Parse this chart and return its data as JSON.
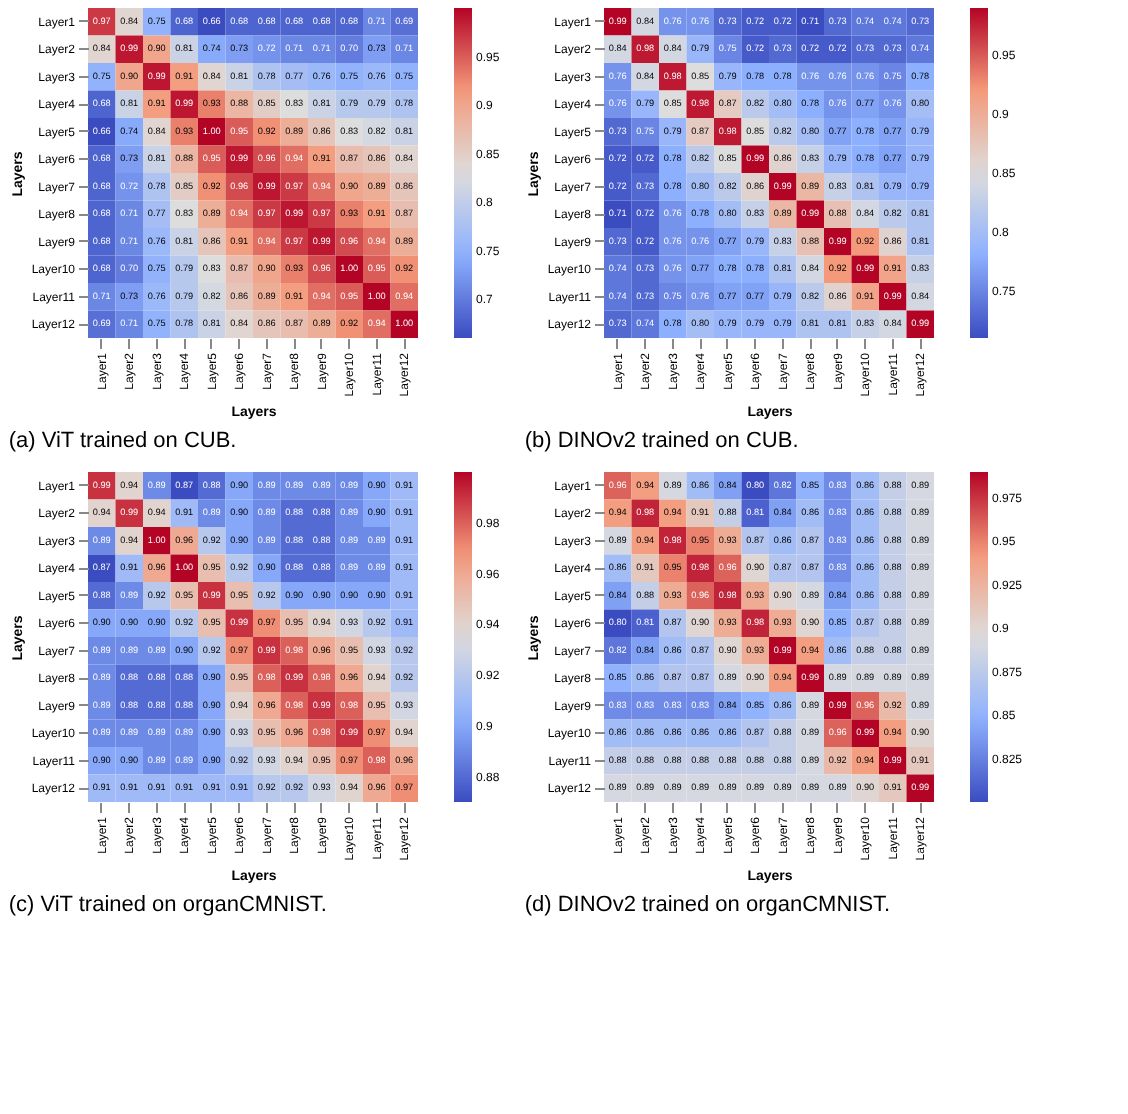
{
  "chart_data": [
    {
      "type": "heatmap",
      "title": "(a) ViT trained on CUB.",
      "xlabel": "Layers",
      "ylabel": "Layers",
      "categories": [
        "Layer1",
        "Layer2",
        "Layer3",
        "Layer4",
        "Layer5",
        "Layer6",
        "Layer7",
        "Layer8",
        "Layer9",
        "Layer10",
        "Layer11",
        "Layer12"
      ],
      "y_categories": [
        "Layer1",
        "Layer2",
        "Layer3",
        "Layer4",
        "Layer5",
        "Layer6",
        "Layer7",
        "Layer8",
        "Layer9",
        "Layer10",
        "Layer11",
        "Layer12"
      ],
      "clim": [
        0.66,
        1.0
      ],
      "cticks": [
        0.7,
        0.75,
        0.8,
        0.85,
        0.9,
        0.95
      ],
      "cells": [
        [
          0.97,
          0.84,
          0.75,
          0.68,
          0.66,
          0.68,
          0.68,
          0.68,
          0.68,
          0.68,
          0.71,
          0.69
        ],
        [
          0.84,
          0.99,
          0.9,
          0.81,
          0.74,
          0.73,
          0.72,
          0.71,
          0.71,
          0.7,
          0.73,
          0.71
        ],
        [
          0.75,
          0.9,
          0.99,
          0.91,
          0.84,
          0.81,
          0.78,
          0.77,
          0.76,
          0.75,
          0.76,
          0.75
        ],
        [
          0.68,
          0.81,
          0.91,
          0.99,
          0.93,
          0.88,
          0.85,
          0.83,
          0.81,
          0.79,
          0.79,
          0.78
        ],
        [
          0.66,
          0.74,
          0.84,
          0.93,
          1.0,
          0.95,
          0.92,
          0.89,
          0.86,
          0.83,
          0.82,
          0.81
        ],
        [
          0.68,
          0.73,
          0.81,
          0.88,
          0.95,
          0.99,
          0.96,
          0.94,
          0.91,
          0.87,
          0.86,
          0.84
        ],
        [
          0.68,
          0.72,
          0.78,
          0.85,
          0.92,
          0.96,
          0.99,
          0.97,
          0.94,
          0.9,
          0.89,
          0.86
        ],
        [
          0.68,
          0.71,
          0.77,
          0.83,
          0.89,
          0.94,
          0.97,
          0.99,
          0.97,
          0.93,
          0.91,
          0.87
        ],
        [
          0.68,
          0.71,
          0.76,
          0.81,
          0.86,
          0.91,
          0.94,
          0.97,
          0.99,
          0.96,
          0.94,
          0.89
        ],
        [
          0.68,
          0.7,
          0.75,
          0.79,
          0.83,
          0.87,
          0.9,
          0.93,
          0.96,
          1.0,
          0.95,
          0.92
        ],
        [
          0.71,
          0.73,
          0.76,
          0.79,
          0.82,
          0.86,
          0.89,
          0.91,
          0.94,
          0.95,
          1.0,
          0.94
        ],
        [
          0.69,
          0.71,
          0.75,
          0.78,
          0.81,
          0.84,
          0.86,
          0.87,
          0.89,
          0.92,
          0.94,
          1.0
        ]
      ],
      "cell_labels": [
        [
          "0.97",
          "0.84",
          "0.75",
          "0.68",
          "0.66",
          "0.68",
          "0.68",
          "0.68",
          "0.68",
          "0.68",
          "0.71",
          "0.69"
        ],
        [
          "0.84",
          "0.99",
          "0.90",
          "0.81",
          "0.74",
          "0.73",
          "0.72",
          "0.71",
          "0.71",
          "0.70",
          "0.73",
          "0.71"
        ],
        [
          "0.75",
          "0.90",
          "0.99",
          "0.91",
          "0.84",
          "0.81",
          "0.78",
          "0.77",
          "0.76",
          "0.75",
          "0.76",
          "0.75"
        ],
        [
          "0.68",
          "0.81",
          "0.91",
          "0.99",
          "0.93",
          "0.88",
          "0.85",
          "0.83",
          "0.81",
          "0.79",
          "0.79",
          "0.78"
        ],
        [
          "0.66",
          "0.74",
          "0.84",
          "0.93",
          "1.00",
          "0.95",
          "0.92",
          "0.89",
          "0.86",
          "0.83",
          "0.82",
          "0.81"
        ],
        [
          "0.68",
          "0.73",
          "0.81",
          "0.88",
          "0.95",
          "0.99",
          "0.96",
          "0.94",
          "0.91",
          "0.87",
          "0.86",
          "0.84"
        ],
        [
          "0.68",
          "0.72",
          "0.78",
          "0.85",
          "0.92",
          "0.96",
          "0.99",
          "0.97",
          "0.94",
          "0.90",
          "0.89",
          "0.86"
        ],
        [
          "0.68",
          "0.71",
          "0.77",
          "0.83",
          "0.89",
          "0.94",
          "0.97",
          "0.99",
          "0.97",
          "0.93",
          "0.91",
          "0.87"
        ],
        [
          "0.68",
          "0.71",
          "0.76",
          "0.81",
          "0.86",
          "0.91",
          "0.94",
          "0.97",
          "0.99",
          "0.96",
          "0.94",
          "0.89"
        ],
        [
          "0.68",
          "0.70",
          "0.75",
          "0.79",
          "0.83",
          "0.87",
          "0.90",
          "0.93",
          "0.96",
          "1.00",
          "0.95",
          "0.92"
        ],
        [
          "0.71",
          "0.73",
          "0.76",
          "0.79",
          "0.82",
          "0.86",
          "0.89",
          "0.91",
          "0.94",
          "0.95",
          "1.00",
          "0.94"
        ],
        [
          "0.69",
          "0.71",
          "0.75",
          "0.78",
          "0.81",
          "0.84",
          "0.86",
          "0.87",
          "0.89",
          "0.92",
          "0.94",
          "1.00"
        ]
      ]
    },
    {
      "type": "heatmap",
      "title": "(b) DINOv2 trained on CUB.",
      "xlabel": "Layers",
      "ylabel": "Layers",
      "categories": [
        "Layer1",
        "Layer2",
        "Layer3",
        "Layer4",
        "Layer5",
        "Layer6",
        "Layer7",
        "Layer8",
        "Layer9",
        "Layer10",
        "Layer11",
        "Layer12"
      ],
      "y_categories": [
        "Layer1",
        "Layer2",
        "Layer3",
        "Layer4",
        "Layer5",
        "Layer6",
        "Layer7",
        "Layer8",
        "Layer9",
        "Layer10",
        "Layer11",
        "Layer12"
      ],
      "clim": [
        0.71,
        0.99
      ],
      "cticks": [
        0.75,
        0.8,
        0.85,
        0.9,
        0.95
      ],
      "cells": [
        [
          0.99,
          0.84,
          0.76,
          0.76,
          0.73,
          0.72,
          0.72,
          0.71,
          0.73,
          0.74,
          0.74,
          0.73
        ],
        [
          0.84,
          0.98,
          0.84,
          0.79,
          0.75,
          0.72,
          0.73,
          0.72,
          0.72,
          0.73,
          0.73,
          0.74
        ],
        [
          0.76,
          0.84,
          0.98,
          0.85,
          0.79,
          0.78,
          0.78,
          0.76,
          0.76,
          0.76,
          0.75,
          0.78
        ],
        [
          0.76,
          0.79,
          0.85,
          0.98,
          0.87,
          0.82,
          0.8,
          0.78,
          0.76,
          0.77,
          0.76,
          0.8
        ],
        [
          0.73,
          0.75,
          0.79,
          0.87,
          0.98,
          0.85,
          0.82,
          0.8,
          0.77,
          0.78,
          0.77,
          0.79
        ],
        [
          0.72,
          0.72,
          0.78,
          0.82,
          0.85,
          0.99,
          0.86,
          0.83,
          0.79,
          0.78,
          0.77,
          0.79
        ],
        [
          0.72,
          0.73,
          0.78,
          0.8,
          0.82,
          0.86,
          0.99,
          0.89,
          0.83,
          0.81,
          0.79,
          0.79
        ],
        [
          0.71,
          0.72,
          0.76,
          0.78,
          0.8,
          0.83,
          0.89,
          0.99,
          0.88,
          0.84,
          0.82,
          0.81
        ],
        [
          0.73,
          0.72,
          0.76,
          0.76,
          0.77,
          0.79,
          0.83,
          0.88,
          0.99,
          0.92,
          0.86,
          0.81
        ],
        [
          0.74,
          0.73,
          0.76,
          0.77,
          0.78,
          0.78,
          0.81,
          0.84,
          0.92,
          0.99,
          0.91,
          0.83
        ],
        [
          0.74,
          0.73,
          0.75,
          0.76,
          0.77,
          0.77,
          0.79,
          0.82,
          0.86,
          0.91,
          0.99,
          0.84
        ],
        [
          0.73,
          0.74,
          0.78,
          0.8,
          0.79,
          0.79,
          0.79,
          0.81,
          0.81,
          0.83,
          0.84,
          0.99
        ]
      ],
      "cell_labels": [
        [
          "0.99",
          "0.84",
          "0.76",
          "0.76",
          "0.73",
          "0.72",
          "0.72",
          "0.71",
          "0.73",
          "0.74",
          "0.74",
          "0.73"
        ],
        [
          "0.84",
          "0.98",
          "0.84",
          "0.79",
          "0.75",
          "0.72",
          "0.73",
          "0.72",
          "0.72",
          "0.73",
          "0.73",
          "0.74"
        ],
        [
          "0.76",
          "0.84",
          "0.98",
          "0.85",
          "0.79",
          "0.78",
          "0.78",
          "0.76",
          "0.76",
          "0.76",
          "0.75",
          "0.78"
        ],
        [
          "0.76",
          "0.79",
          "0.85",
          "0.98",
          "0.87",
          "0.82",
          "0.80",
          "0.78",
          "0.76",
          "0.77",
          "0.76",
          "0.80"
        ],
        [
          "0.73",
          "0.75",
          "0.79",
          "0.87",
          "0.98",
          "0.85",
          "0.82",
          "0.80",
          "0.77",
          "0.78",
          "0.77",
          "0.79"
        ],
        [
          "0.72",
          "0.72",
          "0.78",
          "0.82",
          "0.85",
          "0.99",
          "0.86",
          "0.83",
          "0.79",
          "0.78",
          "0.77",
          "0.79"
        ],
        [
          "0.72",
          "0.73",
          "0.78",
          "0.80",
          "0.82",
          "0.86",
          "0.99",
          "0.89",
          "0.83",
          "0.81",
          "0.79",
          "0.79"
        ],
        [
          "0.71",
          "0.72",
          "0.76",
          "0.78",
          "0.80",
          "0.83",
          "0.89",
          "0.99",
          "0.88",
          "0.84",
          "0.82",
          "0.81"
        ],
        [
          "0.73",
          "0.72",
          "0.76",
          "0.76",
          "0.77",
          "0.79",
          "0.83",
          "0.88",
          "0.99",
          "0.92",
          "0.86",
          "0.81"
        ],
        [
          "0.74",
          "0.73",
          "0.76",
          "0.77",
          "0.78",
          "0.78",
          "0.81",
          "0.84",
          "0.92",
          "0.99",
          "0.91",
          "0.83"
        ],
        [
          "0.74",
          "0.73",
          "0.75",
          "0.76",
          "0.77",
          "0.77",
          "0.79",
          "0.82",
          "0.86",
          "0.91",
          "0.99",
          "0.84"
        ],
        [
          "0.73",
          "0.74",
          "0.78",
          "0.80",
          "0.79",
          "0.79",
          "0.79",
          "0.81",
          "0.81",
          "0.83",
          "0.84",
          "0.99"
        ]
      ]
    },
    {
      "type": "heatmap",
      "title": "(c) ViT trained on organCMNIST.",
      "xlabel": "Layers",
      "ylabel": "Layers",
      "categories": [
        "Layer1",
        "Layer2",
        "Layer3",
        "Layer4",
        "Layer5",
        "Layer6",
        "Layer7",
        "Layer8",
        "Layer9",
        "Layer10",
        "Layer11",
        "Layer12"
      ],
      "y_categories": [
        "Layer1",
        "Layer2",
        "Layer3",
        "Layer4",
        "Layer5",
        "Layer6",
        "Layer7",
        "Layer8",
        "Layer9",
        "Layer10",
        "Layer11",
        "Layer12"
      ],
      "clim": [
        0.87,
        1.0
      ],
      "cticks": [
        0.88,
        0.9,
        0.92,
        0.94,
        0.96,
        0.98
      ],
      "cells": [
        [
          0.99,
          0.94,
          0.89,
          0.87,
          0.88,
          0.9,
          0.89,
          0.89,
          0.89,
          0.89,
          0.9,
          0.91
        ],
        [
          0.94,
          0.99,
          0.94,
          0.91,
          0.89,
          0.9,
          0.89,
          0.88,
          0.88,
          0.89,
          0.9,
          0.91
        ],
        [
          0.89,
          0.94,
          1.0,
          0.96,
          0.92,
          0.9,
          0.89,
          0.88,
          0.88,
          0.89,
          0.89,
          0.91
        ],
        [
          0.87,
          0.91,
          0.96,
          1.0,
          0.95,
          0.92,
          0.9,
          0.88,
          0.88,
          0.89,
          0.89,
          0.91
        ],
        [
          0.88,
          0.89,
          0.92,
          0.95,
          0.99,
          0.95,
          0.92,
          0.9,
          0.9,
          0.9,
          0.9,
          0.91
        ],
        [
          0.9,
          0.9,
          0.9,
          0.92,
          0.95,
          0.99,
          0.97,
          0.95,
          0.94,
          0.93,
          0.92,
          0.91
        ],
        [
          0.89,
          0.89,
          0.89,
          0.9,
          0.92,
          0.97,
          0.99,
          0.98,
          0.96,
          0.95,
          0.93,
          0.92
        ],
        [
          0.89,
          0.88,
          0.88,
          0.88,
          0.9,
          0.95,
          0.98,
          0.99,
          0.98,
          0.96,
          0.94,
          0.92
        ],
        [
          0.89,
          0.88,
          0.88,
          0.88,
          0.9,
          0.94,
          0.96,
          0.98,
          0.99,
          0.98,
          0.95,
          0.93
        ],
        [
          0.89,
          0.89,
          0.89,
          0.89,
          0.9,
          0.93,
          0.95,
          0.96,
          0.98,
          0.99,
          0.97,
          0.94
        ],
        [
          0.9,
          0.9,
          0.89,
          0.89,
          0.9,
          0.92,
          0.93,
          0.94,
          0.95,
          0.97,
          0.98,
          0.96
        ],
        [
          0.91,
          0.91,
          0.91,
          0.91,
          0.91,
          0.91,
          0.92,
          0.92,
          0.93,
          0.94,
          0.96,
          0.97
        ]
      ],
      "cell_labels": [
        [
          "0.99",
          "0.94",
          "0.89",
          "0.87",
          "0.88",
          "0.90",
          "0.89",
          "0.89",
          "0.89",
          "0.89",
          "0.90",
          "0.91"
        ],
        [
          "0.94",
          "0.99",
          "0.94",
          "0.91",
          "0.89",
          "0.90",
          "0.89",
          "0.88",
          "0.88",
          "0.89",
          "0.90",
          "0.91"
        ],
        [
          "0.89",
          "0.94",
          "1.00",
          "0.96",
          "0.92",
          "0.90",
          "0.89",
          "0.88",
          "0.88",
          "0.89",
          "0.89",
          "0.91"
        ],
        [
          "0.87",
          "0.91",
          "0.96",
          "1.00",
          "0.95",
          "0.92",
          "0.90",
          "0.88",
          "0.88",
          "0.89",
          "0.89",
          "0.91"
        ],
        [
          "0.88",
          "0.89",
          "0.92",
          "0.95",
          "0.99",
          "0.95",
          "0.92",
          "0.90",
          "0.90",
          "0.90",
          "0.90",
          "0.91"
        ],
        [
          "0.90",
          "0.90",
          "0.90",
          "0.92",
          "0.95",
          "0.99",
          "0.97",
          "0.95",
          "0.94",
          "0.93",
          "0.92",
          "0.91"
        ],
        [
          "0.89",
          "0.89",
          "0.89",
          "0.90",
          "0.92",
          "0.97",
          "0.99",
          "0.98",
          "0.96",
          "0.95",
          "0.93",
          "0.92"
        ],
        [
          "0.89",
          "0.88",
          "0.88",
          "0.88",
          "0.90",
          "0.95",
          "0.98",
          "0.99",
          "0.98",
          "0.96",
          "0.94",
          "0.92"
        ],
        [
          "0.89",
          "0.88",
          "0.88",
          "0.88",
          "0.90",
          "0.94",
          "0.96",
          "0.98",
          "0.99",
          "0.98",
          "0.95",
          "0.93"
        ],
        [
          "0.89",
          "0.89",
          "0.89",
          "0.89",
          "0.90",
          "0.93",
          "0.95",
          "0.96",
          "0.98",
          "0.99",
          "0.97",
          "0.94"
        ],
        [
          "0.90",
          "0.90",
          "0.89",
          "0.89",
          "0.90",
          "0.92",
          "0.93",
          "0.94",
          "0.95",
          "0.97",
          "0.98",
          "0.96"
        ],
        [
          "0.91",
          "0.91",
          "0.91",
          "0.91",
          "0.91",
          "0.91",
          "0.92",
          "0.92",
          "0.93",
          "0.94",
          "0.96",
          "0.97"
        ]
      ]
    },
    {
      "type": "heatmap",
      "title": "(d) DINOv2 trained on organCMNIST.",
      "xlabel": "Layers",
      "ylabel": "Layers",
      "categories": [
        "Layer1",
        "Layer2",
        "Layer3",
        "Layer4",
        "Layer5",
        "Layer6",
        "Layer7",
        "Layer8",
        "Layer9",
        "Layer10",
        "Layer11",
        "Layer12"
      ],
      "y_categories": [
        "Layer1",
        "Layer2",
        "Layer3",
        "Layer4",
        "Layer5",
        "Layer6",
        "Layer7",
        "Layer8",
        "Layer9",
        "Layer10",
        "Layer11",
        "Layer12"
      ],
      "clim": [
        0.8,
        0.99
      ],
      "cticks": [
        0.825,
        0.85,
        0.875,
        0.9,
        0.925,
        0.95,
        0.975
      ],
      "cells": [
        [
          0.96,
          0.94,
          0.89,
          0.86,
          0.84,
          0.8,
          0.82,
          0.85,
          0.83,
          0.86,
          0.88,
          0.89
        ],
        [
          0.94,
          0.98,
          0.94,
          0.91,
          0.88,
          0.81,
          0.84,
          0.86,
          0.83,
          0.86,
          0.88,
          0.89
        ],
        [
          0.89,
          0.94,
          0.98,
          0.95,
          0.93,
          0.87,
          0.86,
          0.87,
          0.83,
          0.86,
          0.88,
          0.89
        ],
        [
          0.86,
          0.91,
          0.95,
          0.98,
          0.96,
          0.9,
          0.87,
          0.87,
          0.83,
          0.86,
          0.88,
          0.89
        ],
        [
          0.84,
          0.88,
          0.93,
          0.96,
          0.98,
          0.93,
          0.9,
          0.89,
          0.84,
          0.86,
          0.88,
          0.89
        ],
        [
          0.8,
          0.81,
          0.87,
          0.9,
          0.93,
          0.98,
          0.93,
          0.9,
          0.85,
          0.87,
          0.88,
          0.89
        ],
        [
          0.82,
          0.84,
          0.86,
          0.87,
          0.9,
          0.93,
          0.99,
          0.94,
          0.86,
          0.88,
          0.88,
          0.89
        ],
        [
          0.85,
          0.86,
          0.87,
          0.87,
          0.89,
          0.9,
          0.94,
          0.99,
          0.89,
          0.89,
          0.89,
          0.89
        ],
        [
          0.83,
          0.83,
          0.83,
          0.83,
          0.84,
          0.85,
          0.86,
          0.89,
          0.99,
          0.96,
          0.92,
          0.89
        ],
        [
          0.86,
          0.86,
          0.86,
          0.86,
          0.86,
          0.87,
          0.88,
          0.89,
          0.96,
          0.99,
          0.94,
          0.9
        ],
        [
          0.88,
          0.88,
          0.88,
          0.88,
          0.88,
          0.88,
          0.88,
          0.89,
          0.92,
          0.94,
          0.99,
          0.91
        ],
        [
          0.89,
          0.89,
          0.89,
          0.89,
          0.89,
          0.89,
          0.89,
          0.89,
          0.89,
          0.9,
          0.91,
          0.99
        ]
      ],
      "cell_labels": [
        [
          "0.96",
          "0.94",
          "0.89",
          "0.86",
          "0.84",
          "0.80",
          "0.82",
          "0.85",
          "0.83",
          "0.86",
          "0.88",
          "0.89"
        ],
        [
          "0.94",
          "0.98",
          "0.94",
          "0.91",
          "0.88",
          "0.81",
          "0.84",
          "0.86",
          "0.83",
          "0.86",
          "0.88",
          "0.89"
        ],
        [
          "0.89",
          "0.94",
          "0.98",
          "0.95",
          "0.93",
          "0.87",
          "0.86",
          "0.87",
          "0.83",
          "0.86",
          "0.88",
          "0.89"
        ],
        [
          "0.86",
          "0.91",
          "0.95",
          "0.98",
          "0.96",
          "0.90",
          "0.87",
          "0.87",
          "0.83",
          "0.86",
          "0.88",
          "0.89"
        ],
        [
          "0.84",
          "0.88",
          "0.93",
          "0.96",
          "0.98",
          "0.93",
          "0.90",
          "0.89",
          "0.84",
          "0.86",
          "0.88",
          "0.89"
        ],
        [
          "0.80",
          "0.81",
          "0.87",
          "0.90",
          "0.93",
          "0.98",
          "0.93",
          "0.90",
          "0.85",
          "0.87",
          "0.88",
          "0.89"
        ],
        [
          "0.82",
          "0.84",
          "0.86",
          "0.87",
          "0.90",
          "0.93",
          "0.99",
          "0.94",
          "0.86",
          "0.88",
          "0.88",
          "0.89"
        ],
        [
          "0.85",
          "0.86",
          "0.87",
          "0.87",
          "0.89",
          "0.90",
          "0.94",
          "0.99",
          "0.89",
          "0.89",
          "0.89",
          "0.89"
        ],
        [
          "0.83",
          "0.83",
          "0.83",
          "0.83",
          "0.84",
          "0.85",
          "0.86",
          "0.89",
          "0.99",
          "0.96",
          "0.92",
          "0.89"
        ],
        [
          "0.86",
          "0.86",
          "0.86",
          "0.86",
          "0.86",
          "0.87",
          "0.88",
          "0.89",
          "0.96",
          "0.99",
          "0.94",
          "0.90"
        ],
        [
          "0.88",
          "0.88",
          "0.88",
          "0.88",
          "0.88",
          "0.88",
          "0.88",
          "0.89",
          "0.92",
          "0.94",
          "0.99",
          "0.91"
        ],
        [
          "0.89",
          "0.89",
          "0.89",
          "0.89",
          "0.89",
          "0.89",
          "0.89",
          "0.89",
          "0.89",
          "0.90",
          "0.91",
          "0.99"
        ]
      ]
    }
  ]
}
